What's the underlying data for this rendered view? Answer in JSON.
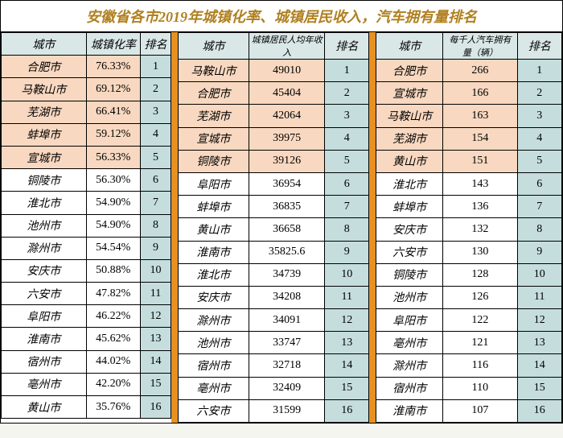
{
  "title": "安徽省各市2019年城镇化率、城镇居民收入，汽车拥有量排名",
  "title_fontsize": 18,
  "title_color": "#b08020",
  "colors": {
    "border_orange": "#e89020",
    "header_bg": "#d9e7e7",
    "rank_bg": "#c5dddd",
    "highlight_bg": "#f8d8c0",
    "grid": "#000000"
  },
  "sections": [
    {
      "columns": [
        "城市",
        "城镇化率",
        "排名"
      ],
      "row_fontsize": 14,
      "rows": [
        [
          "合肥市",
          "76.33%",
          "1"
        ],
        [
          "马鞍山市",
          "69.12%",
          "2"
        ],
        [
          "芜湖市",
          "66.41%",
          "3"
        ],
        [
          "蚌埠市",
          "59.12%",
          "4"
        ],
        [
          "宣城市",
          "56.33%",
          "5"
        ],
        [
          "铜陵市",
          "56.30%",
          "6"
        ],
        [
          "淮北市",
          "54.90%",
          "7"
        ],
        [
          "池州市",
          "54.90%",
          "8"
        ],
        [
          "滁州市",
          "54.54%",
          "9"
        ],
        [
          "安庆市",
          "50.88%",
          "10"
        ],
        [
          "六安市",
          "47.82%",
          "11"
        ],
        [
          "阜阳市",
          "46.22%",
          "12"
        ],
        [
          "淮南市",
          "45.62%",
          "13"
        ],
        [
          "宿州市",
          "44.02%",
          "14"
        ],
        [
          "亳州市",
          "42.20%",
          "15"
        ],
        [
          "黄山市",
          "35.76%",
          "16"
        ]
      ]
    },
    {
      "columns": [
        "城市",
        "城镇居民人均年收入",
        "排名"
      ],
      "row_fontsize": 14,
      "rows": [
        [
          "马鞍山市",
          "49010",
          "1"
        ],
        [
          "合肥市",
          "45404",
          "2"
        ],
        [
          "芜湖市",
          "42064",
          "3"
        ],
        [
          "宣城市",
          "39975",
          "4"
        ],
        [
          "铜陵市",
          "39126",
          "5"
        ],
        [
          "阜阳市",
          "36954",
          "6"
        ],
        [
          "蚌埠市",
          "36835",
          "7"
        ],
        [
          "黄山市",
          "36658",
          "8"
        ],
        [
          "淮南市",
          "35825.6",
          "9"
        ],
        [
          "淮北市",
          "34739",
          "10"
        ],
        [
          "安庆市",
          "34208",
          "11"
        ],
        [
          "滁州市",
          "34091",
          "12"
        ],
        [
          "池州市",
          "33747",
          "13"
        ],
        [
          "宿州市",
          "32718",
          "14"
        ],
        [
          "亳州市",
          "32409",
          "15"
        ],
        [
          "六安市",
          "31599",
          "16"
        ]
      ]
    },
    {
      "columns": [
        "城市",
        "每千人汽车拥有量（辆）",
        "排名"
      ],
      "row_fontsize": 14,
      "rows": [
        [
          "合肥市",
          "266",
          "1"
        ],
        [
          "宣城市",
          "166",
          "2"
        ],
        [
          "马鞍山市",
          "163",
          "3"
        ],
        [
          "芜湖市",
          "154",
          "4"
        ],
        [
          "黄山市",
          "151",
          "5"
        ],
        [
          "淮北市",
          "143",
          "6"
        ],
        [
          "蚌埠市",
          "136",
          "7"
        ],
        [
          "安庆市",
          "132",
          "8"
        ],
        [
          "六安市",
          "130",
          "9"
        ],
        [
          "铜陵市",
          "128",
          "10"
        ],
        [
          "池州市",
          "126",
          "11"
        ],
        [
          "阜阳市",
          "122",
          "12"
        ],
        [
          "亳州市",
          "121",
          "13"
        ],
        [
          "滁州市",
          "116",
          "14"
        ],
        [
          "宿州市",
          "110",
          "15"
        ],
        [
          "淮南市",
          "107",
          "16"
        ]
      ]
    }
  ],
  "highlight_rows": [
    0,
    1,
    2,
    3,
    4
  ]
}
